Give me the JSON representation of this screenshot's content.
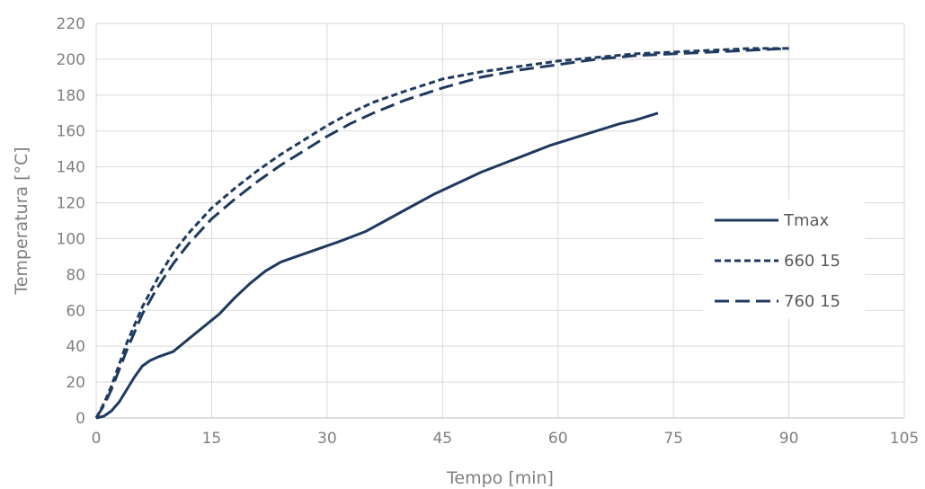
{
  "chart_data": {
    "type": "line",
    "xlabel": "Tempo [min]",
    "ylabel": "Temperatura [°C]",
    "xlim": [
      0,
      105
    ],
    "ylim": [
      0,
      220
    ],
    "xticks": [
      "0",
      "15",
      "30",
      "45",
      "60",
      "75",
      "90",
      "105"
    ],
    "yticks": [
      "0",
      "20",
      "40",
      "60",
      "80",
      "100",
      "120",
      "140",
      "160",
      "180",
      "200",
      "220"
    ],
    "grid": true,
    "legend_position": "right",
    "line_color": "#1f3a5f",
    "series": [
      {
        "name": "Tmax",
        "style": "solid",
        "x": [
          0,
          1,
          2,
          3,
          4,
          5,
          6,
          7,
          8,
          10,
          12,
          14,
          16,
          18,
          20,
          22,
          24,
          26,
          28,
          30,
          32,
          35,
          38,
          41,
          44,
          47,
          50,
          53,
          56,
          59,
          62,
          65,
          68,
          70,
          73
        ],
        "y": [
          0,
          1,
          4,
          9,
          16,
          23,
          29,
          32,
          34,
          37,
          44,
          51,
          58,
          67,
          75,
          82,
          87,
          90,
          93,
          96,
          99,
          104,
          111,
          118,
          125,
          131,
          137,
          142,
          147,
          152,
          156,
          160,
          164,
          166,
          170
        ]
      },
      {
        "name": "660 15",
        "style": "short-dash",
        "x": [
          0,
          1,
          2,
          3,
          4,
          6,
          8,
          10,
          12,
          15,
          18,
          21,
          24,
          27,
          30,
          33,
          36,
          40,
          45,
          50,
          55,
          60,
          65,
          70,
          75,
          80,
          85,
          90
        ],
        "y": [
          0,
          8,
          18,
          30,
          42,
          62,
          78,
          92,
          103,
          117,
          128,
          138,
          147,
          155,
          163,
          170,
          176,
          182,
          189,
          193,
          196,
          199,
          201,
          203,
          204,
          205,
          206,
          206
        ]
      },
      {
        "name": "760 15",
        "style": "long-dash",
        "x": [
          0,
          1,
          2,
          3,
          4,
          6,
          8,
          10,
          12,
          15,
          18,
          21,
          24,
          27,
          30,
          33,
          36,
          40,
          45,
          50,
          55,
          60,
          65,
          70,
          75,
          80,
          85,
          90
        ],
        "y": [
          0,
          7,
          16,
          27,
          38,
          58,
          73,
          86,
          97,
          111,
          122,
          132,
          141,
          149,
          157,
          164,
          170,
          177,
          184,
          190,
          194,
          197,
          200,
          202,
          203,
          204,
          205,
          206
        ]
      }
    ]
  }
}
